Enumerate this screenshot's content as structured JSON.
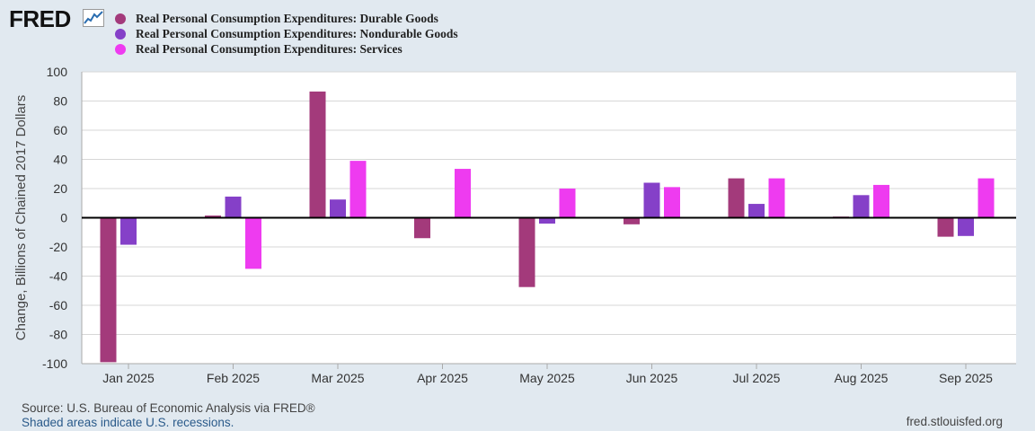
{
  "logo": {
    "text": "FRED"
  },
  "chart_data": {
    "type": "bar",
    "ylabel": "Change, Billions of Chained 2017 Dollars",
    "ylim": [
      -100,
      100
    ],
    "yticks": [
      100,
      80,
      60,
      40,
      20,
      0,
      -20,
      -40,
      -60,
      -80,
      -100
    ],
    "categories": [
      "Jan 2025",
      "Feb 2025",
      "Mar 2025",
      "Apr 2025",
      "May 2025",
      "Jun 2025",
      "Jul 2025",
      "Aug 2025",
      "Sep 2025"
    ],
    "series": [
      {
        "name": "Real Personal Consumption Expenditures: Durable Goods",
        "color": "#a33a7b",
        "values": [
          -99,
          1.5,
          86.5,
          -14,
          -47.5,
          -4.5,
          27,
          0.8,
          -13
        ]
      },
      {
        "name": "Real Personal Consumption Expenditures: Nondurable Goods",
        "color": "#8540c8",
        "values": [
          -18.5,
          14.5,
          12.5,
          0,
          -4,
          24,
          9.5,
          15.5,
          -12.5
        ]
      },
      {
        "name": "Real Personal Consumption Expenditures: Services",
        "color": "#ee3bf0",
        "values": [
          0,
          -35,
          39,
          33.5,
          20,
          21,
          27,
          22.5,
          27
        ]
      }
    ]
  },
  "footer": {
    "source": "Source: U.S. Bureau of Economic Analysis via FRED®",
    "recessions": "Shaded areas indicate U.S. recessions.",
    "site": "fred.stlouisfed.org"
  }
}
